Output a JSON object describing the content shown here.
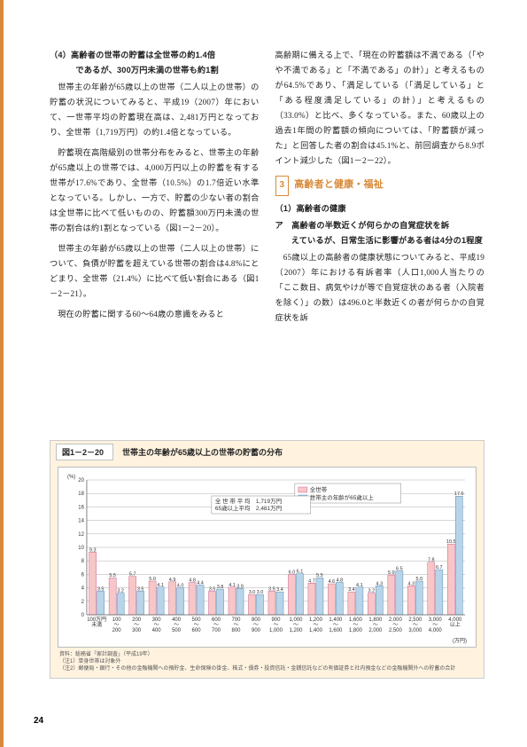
{
  "page_number": "24",
  "left_col": {
    "sect4_title_line1": "（4）高齢者の世帯の貯蓄は全世帯の約1.4倍",
    "sect4_title_line2": "であるが、300万円未満の世帯も約1割",
    "p1": "世帯主の年齢が65歳以上の世帯（二人以上の世帯）の貯蓄の状況についてみると、平成19（2007）年において、一世帯平均の貯蓄現在高は、2,481万円となっており、全世帯（1,719万円）の約1.4倍となっている。",
    "p2": "貯蓄現在高階級別の世帯分布をみると、世帯主の年齢が65歳以上の世帯では、4,000万円以上の貯蓄を有する世帯が17.6%であり、全世帯（10.5%）の1.7倍近い水準となっている。しかし、一方で、貯蓄の少ない者の割合は全世帯に比べて低いものの、貯蓄額300万円未満の世帯の割合は約1割となっている（図1－2－20）。",
    "p3": "世帯主の年齢が65歳以上の世帯（二人以上の世帯）について、負債が貯蓄を超えている世帯の割合は4.8%にとどまり、全世帯（21.4%）に比べて低い割合にある（図1－2－21）。",
    "p4": "現在の貯蓄に関する60〜64歳の意識をみると"
  },
  "right_col": {
    "p1": "高齢期に備える上で、「現在の貯蓄額は不満である（「やや不満である」と「不満である」の計）」と考えるものが64.5%であり、「満足している（「満足している」と「ある程度満足している」の計）」と考えるもの（33.0%）と比べ、多くなっている。また、60歳以上の過去1年間の貯蓄額の傾向については、「貯蓄額が減った」と回答した者の割合は45.1%と、前回調査から8.9ポイント減少した（図1－2－22）。",
    "section3_num": "3",
    "section3_title": "高齢者と健康・福祉",
    "sub1": "（1）高齢者の健康",
    "sub2_line1": "ア　高齢者の半数近くが何らかの自覚症状を訴",
    "sub2_line2": "えているが、日常生活に影響がある者は4分の1程度",
    "p2": "65歳以上の高齢者の健康状態についてみると、平成19（2007）年における有訴者率（人口1,000人当たりの「ここ数日、病気やけが等で自覚症状のある者（入院者を除く）」の数）は496.0と半数近くの者が何らかの自覚症状を訴"
  },
  "figure": {
    "badge": "図1－2－20",
    "title": "世帯主の年齢が65歳以上の世帯の貯蓄の分布",
    "legend_all": "全世帯",
    "legend_elderly": "世帯主の年齢が65歳以上",
    "avg_box_l1": "全 世 帯 平 均　1,719万円",
    "avg_box_l2": "65歳以上平均　2,481万円",
    "y_unit": "(%)",
    "x_unit": "(万円)",
    "ymax": 20,
    "ytick": 2,
    "colors": {
      "all": "#f7c6c6",
      "all_stroke": "#cc6699",
      "elderly": "#b8d4e8",
      "elderly_stroke": "#5a8db8",
      "grid": "#999999",
      "frame": "#666666"
    },
    "categories": [
      "100万円\n未満",
      "100\n〜\n200",
      "200\n〜\n300",
      "300\n〜\n400",
      "400\n〜\n500",
      "500\n〜\n600",
      "600\n〜\n700",
      "700\n〜\n800",
      "800\n〜\n900",
      "900\n〜\n1,000",
      "1,000\n〜\n1,200",
      "1,200\n〜\n1,400",
      "1,400\n〜\n1,600",
      "1,600\n〜\n1,800",
      "1,800\n〜\n2,000",
      "2,000\n〜\n2,500",
      "2,500\n〜\n3,000",
      "3,000\n〜\n4,000",
      "4,000\n以上"
    ],
    "all_values": [
      9.3,
      5.5,
      5.7,
      5.0,
      4.9,
      4.8,
      3.5,
      4.1,
      3.0,
      3.5,
      6.0,
      4.7,
      4.6,
      3.4,
      3.2,
      5.9,
      4.3,
      7.8,
      10.5
    ],
    "elderly_values": [
      3.5,
      3.2,
      3.5,
      4.1,
      4.0,
      4.4,
      3.8,
      3.9,
      3.0,
      3.4,
      6.1,
      5.5,
      4.8,
      4.1,
      4.3,
      6.5,
      5.0,
      6.7,
      17.6
    ],
    "footnote1": "資料：総務省「家計調査」（平成19年）",
    "footnote2": "（注1）単身世帯は対象外",
    "footnote3": "（注2）郵便局・銀行・その他の金融機関への預貯金、生命保険の掛金、株式・債券・投資信託・金銭信託などの有価証券と社内預金などの金融機関外への貯蓄の合計"
  }
}
